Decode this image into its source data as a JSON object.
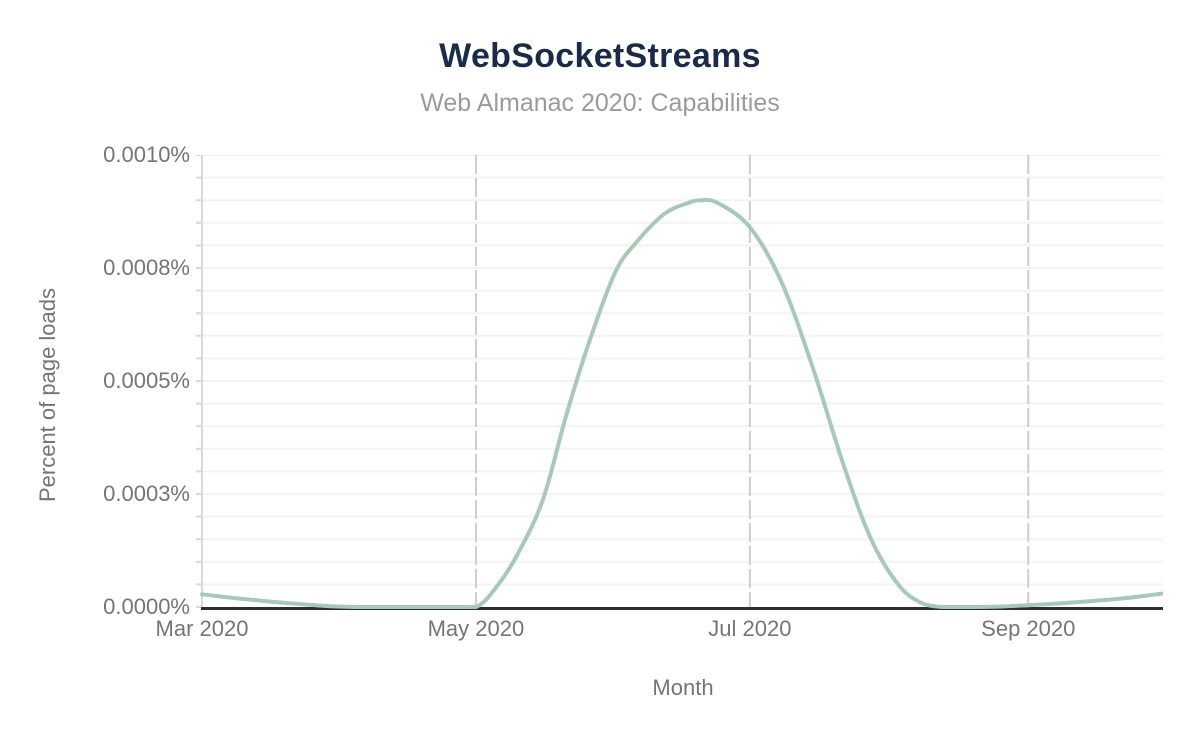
{
  "header": {
    "title": "WebSocketStreams",
    "subtitle": "Web Almanac 2020: Capabilities"
  },
  "chart_data": {
    "type": "line",
    "title": "WebSocketStreams",
    "subtitle": "Web Almanac 2020: Capabilities",
    "xlabel": "Month",
    "ylabel": "Percent of page loads",
    "value_unit": "percent",
    "ylim": [
      0,
      0.001
    ],
    "x_domain_days": [
      0,
      214
    ],
    "x_domain_dates": [
      "2020-03-01",
      "2020-10-01"
    ],
    "grid": "horizontal minor gridlines on; vertical dashed gridlines at month ticks",
    "legend": "none",
    "line_color": "#a8c9b6",
    "axis_color": "#2e2e2e",
    "minor_grid_color": "#f3f3f3",
    "vertical_grid_color": "#cdcdcd",
    "left_axis_color": "#d9d9d9",
    "y_ticks": [
      {
        "label": "0.0010%",
        "value": 0.001
      },
      {
        "label": "0.0008%",
        "value": 0.00075
      },
      {
        "label": "0.0005%",
        "value": 0.0005
      },
      {
        "label": "0.0003%",
        "value": 0.00025
      },
      {
        "label": "0.0000%",
        "value": 0
      }
    ],
    "x_ticks": [
      {
        "label": "Mar 2020",
        "day": 0
      },
      {
        "label": "May 2020",
        "day": 61
      },
      {
        "label": "Jul 2020",
        "day": 122
      },
      {
        "label": "Sep 2020",
        "day": 184
      }
    ],
    "series": [
      {
        "name": "WebSocketStreams",
        "points": [
          {
            "date": "2020-03-01",
            "day": 0,
            "value": 2.8e-05
          },
          {
            "date": "2020-03-08",
            "day": 7,
            "value": 2e-05
          },
          {
            "date": "2020-03-15",
            "day": 14,
            "value": 1.3e-05
          },
          {
            "date": "2020-03-22",
            "day": 21,
            "value": 7e-06
          },
          {
            "date": "2020-03-29",
            "day": 28,
            "value": 2e-06
          },
          {
            "date": "2020-04-04",
            "day": 34,
            "value": 0
          },
          {
            "date": "2020-04-14",
            "day": 44,
            "value": 0
          },
          {
            "date": "2020-04-24",
            "day": 54,
            "value": 0
          },
          {
            "date": "2020-05-01",
            "day": 61,
            "value": 0
          },
          {
            "date": "2020-05-06",
            "day": 66,
            "value": 5e-05
          },
          {
            "date": "2020-05-11",
            "day": 71,
            "value": 0.00013
          },
          {
            "date": "2020-05-16",
            "day": 76,
            "value": 0.00024
          },
          {
            "date": "2020-05-21",
            "day": 81,
            "value": 0.00042
          },
          {
            "date": "2020-05-26",
            "day": 86,
            "value": 0.00058
          },
          {
            "date": "2020-06-01",
            "day": 92,
            "value": 0.00074
          },
          {
            "date": "2020-06-06",
            "day": 97,
            "value": 0.00081
          },
          {
            "date": "2020-06-12",
            "day": 103,
            "value": 0.00087
          },
          {
            "date": "2020-06-17",
            "day": 108,
            "value": 0.000893
          },
          {
            "date": "2020-06-20",
            "day": 111,
            "value": 0.0009
          },
          {
            "date": "2020-06-24",
            "day": 115,
            "value": 0.000893
          },
          {
            "date": "2020-07-01",
            "day": 122,
            "value": 0.00084
          },
          {
            "date": "2020-07-08",
            "day": 129,
            "value": 0.00072
          },
          {
            "date": "2020-07-15",
            "day": 136,
            "value": 0.00053
          },
          {
            "date": "2020-07-22",
            "day": 143,
            "value": 0.00031
          },
          {
            "date": "2020-07-28",
            "day": 149,
            "value": 0.00015
          },
          {
            "date": "2020-08-03",
            "day": 155,
            "value": 5e-05
          },
          {
            "date": "2020-08-08",
            "day": 160,
            "value": 1e-05
          },
          {
            "date": "2020-08-13",
            "day": 165,
            "value": 0
          },
          {
            "date": "2020-08-20",
            "day": 172,
            "value": 0
          },
          {
            "date": "2020-08-26",
            "day": 178,
            "value": 1e-06
          },
          {
            "date": "2020-09-01",
            "day": 184,
            "value": 4e-06
          },
          {
            "date": "2020-09-08",
            "day": 191,
            "value": 8e-06
          },
          {
            "date": "2020-09-15",
            "day": 198,
            "value": 1.3e-05
          },
          {
            "date": "2020-09-23",
            "day": 206,
            "value": 2e-05
          },
          {
            "date": "2020-10-01",
            "day": 214,
            "value": 3e-05
          }
        ]
      }
    ]
  }
}
